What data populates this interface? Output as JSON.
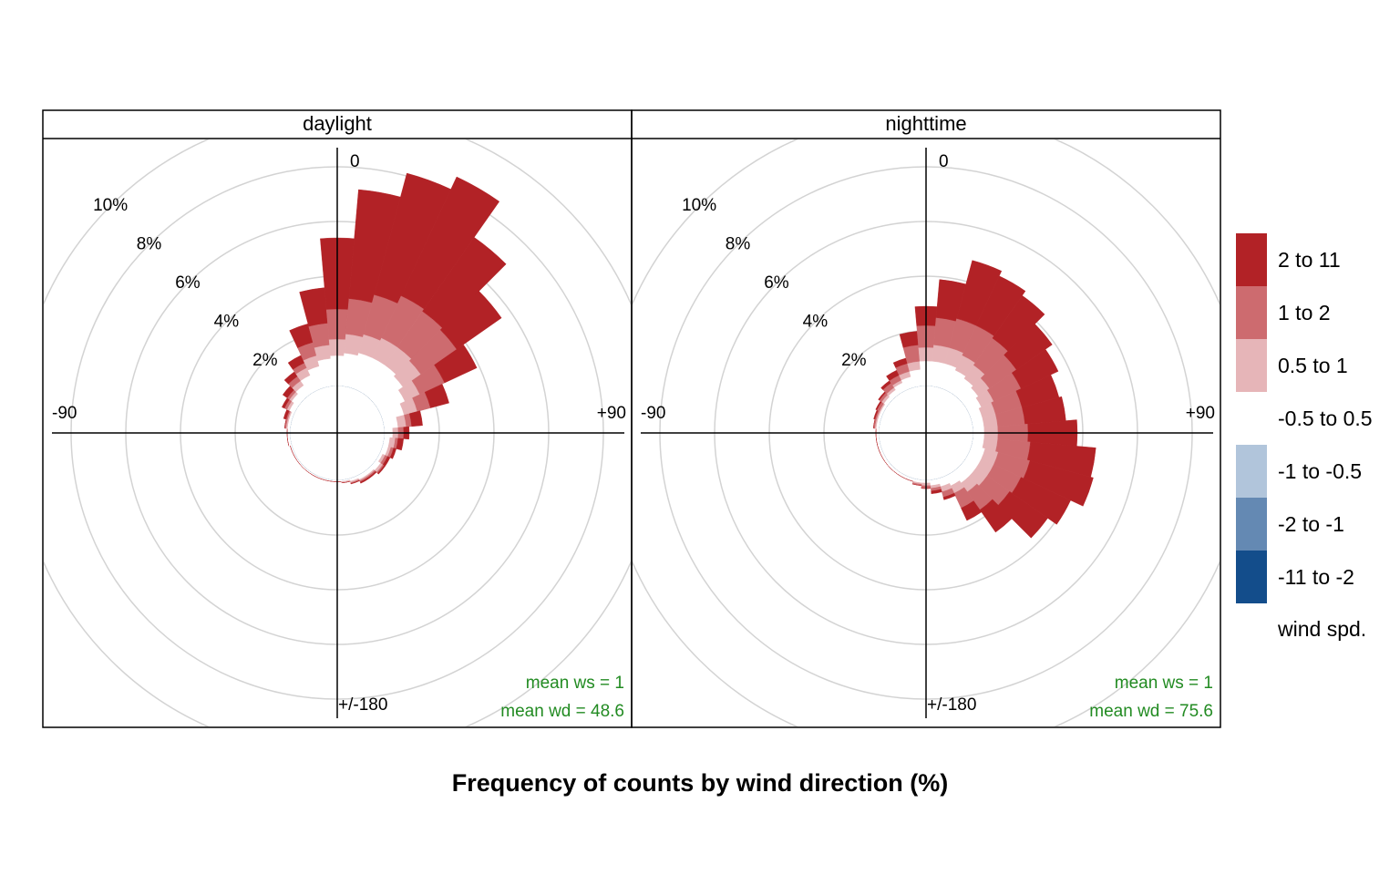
{
  "chart_data": {
    "type": "windrose",
    "title": "Frequency of counts by wind direction (%)",
    "legend_title": "wind spd.",
    "directions": [
      -180,
      -170,
      -160,
      -150,
      -140,
      -130,
      -120,
      -110,
      -100,
      -90,
      -80,
      -70,
      -60,
      -50,
      -40,
      -30,
      -20,
      -10,
      0,
      10,
      20,
      30,
      40,
      50,
      60,
      70,
      80,
      90,
      100,
      110,
      120,
      130,
      140,
      150,
      160,
      170
    ],
    "bin_width": 10,
    "rlim": [
      0,
      10
    ],
    "rticks": [
      {
        "value": 2,
        "label": "2%"
      },
      {
        "value": 4,
        "label": "4%"
      },
      {
        "value": 6,
        "label": "6%"
      },
      {
        "value": 8,
        "label": "8%"
      },
      {
        "value": 10,
        "label": "10%"
      }
    ],
    "angle_ticks": [
      0,
      {
        "value": 90,
        "label": "+90"
      },
      {
        "value": -90,
        "label": "-90"
      },
      {
        "value": 180,
        "label": "+/-180"
      }
    ],
    "grid": true,
    "speed_bins": [
      {
        "name": "-11 to -2",
        "color": "#134d8b"
      },
      {
        "name": "-2 to -1",
        "color": "#6489b3"
      },
      {
        "name": "-1 to -0.5",
        "color": "#b1c5db"
      },
      {
        "name": "-0.5 to 0.5",
        "color": "#ffffff"
      },
      {
        "name": "0.5 to 1",
        "color": "#e6b5b8"
      },
      {
        "name": "1 to 2",
        "color": "#cd6b6f"
      },
      {
        "name": "2 to 11",
        "color": "#b22226"
      }
    ],
    "panels": [
      {
        "title": "daylight",
        "annotations": [
          "mean ws =  1",
          "mean wd =  48.6"
        ],
        "values": [
          [
            0,
            0,
            0,
            0,
            0,
            0,
            0,
            0,
            0,
            0,
            0,
            0,
            0,
            0,
            0,
            0,
            0,
            0,
            0,
            0,
            0,
            0,
            0,
            0,
            0,
            0,
            0,
            0,
            0,
            0,
            0,
            0,
            0,
            0,
            0,
            0
          ],
          [
            0,
            0,
            0,
            0,
            0,
            0,
            0,
            0,
            0,
            0,
            0,
            0,
            0,
            0,
            0,
            0,
            0,
            0,
            0,
            0,
            0,
            0,
            0,
            0,
            0,
            0,
            0,
            0,
            0,
            0,
            0,
            0,
            0,
            0,
            0,
            0
          ],
          [
            0,
            0,
            0,
            0,
            0,
            0,
            0,
            0,
            0,
            0,
            0,
            0,
            0,
            0,
            0,
            0,
            0,
            0,
            0,
            0,
            0,
            0,
            0,
            0,
            0,
            0,
            0,
            0,
            0,
            0,
            0,
            0,
            0,
            0,
            0,
            0
          ],
          [
            0.05,
            0.05,
            0.05,
            0.05,
            0.05,
            0.05,
            0.05,
            0.05,
            0.1,
            0.1,
            0.1,
            0.1,
            0.2,
            0.3,
            0.4,
            0.6,
            0.8,
            1.0,
            1.1,
            1.2,
            1.3,
            1.3,
            1.3,
            1.2,
            1.0,
            0.8,
            0.5,
            0.3,
            0.2,
            0.2,
            0.1,
            0.2,
            0.15,
            0.15,
            0.1,
            0.05
          ],
          [
            0,
            0,
            0,
            0,
            0,
            0,
            0,
            0,
            0,
            0,
            0.05,
            0.05,
            0.1,
            0.1,
            0.2,
            0.3,
            0.4,
            0.5,
            0.6,
            0.7,
            0.7,
            0.8,
            0.8,
            0.8,
            0.6,
            0.5,
            0.3,
            0.2,
            0.2,
            0.1,
            0.1,
            0.1,
            0.05,
            0.05,
            0.05,
            0.05
          ],
          [
            0,
            0,
            0,
            0,
            0,
            0,
            0,
            0,
            0,
            0,
            0.05,
            0.05,
            0.1,
            0.1,
            0.2,
            0.2,
            0.5,
            0.8,
            1.1,
            1.3,
            1.5,
            1.7,
            1.6,
            1.6,
            1.0,
            0.5,
            0.2,
            0.2,
            0.1,
            0.1,
            0.1,
            0.05,
            0.05,
            0.05,
            0.03,
            0
          ],
          [
            0,
            0,
            0,
            0,
            0,
            0,
            0,
            0,
            0,
            0,
            0,
            0.1,
            0.1,
            0.2,
            0.2,
            0.3,
            0.7,
            1.3,
            2.6,
            4.0,
            4.6,
            4.8,
            3.3,
            2.0,
            1.3,
            0.7,
            0.4,
            0.2,
            0.2,
            0.1,
            0.1,
            0.05,
            0.05,
            0.05,
            0.02,
            0
          ]
        ]
      },
      {
        "title": "nighttime",
        "annotations": [
          "mean ws =  1",
          "mean wd =  75.6"
        ],
        "values": [
          [
            0,
            0,
            0,
            0,
            0,
            0,
            0,
            0,
            0,
            0,
            0,
            0,
            0,
            0,
            0,
            0,
            0,
            0,
            0,
            0,
            0,
            0,
            0,
            0,
            0,
            0,
            0,
            0,
            0,
            0,
            0,
            0,
            0,
            0,
            0,
            0
          ],
          [
            0,
            0,
            0,
            0,
            0,
            0,
            0,
            0,
            0,
            0,
            0,
            0,
            0,
            0,
            0,
            0,
            0,
            0,
            0,
            0,
            0,
            0,
            0,
            0,
            0,
            0,
            0,
            0,
            0,
            0,
            0,
            0,
            0,
            0,
            0,
            0
          ],
          [
            0,
            0,
            0,
            0,
            0,
            0,
            0,
            0,
            0,
            0,
            0,
            0,
            0,
            0,
            0,
            0,
            0,
            0,
            0,
            0,
            0,
            0,
            0,
            0,
            0,
            0,
            0,
            0,
            0,
            0,
            0,
            0,
            0,
            0,
            0,
            0
          ],
          [
            0.1,
            0.1,
            0.1,
            0.1,
            0.1,
            0.1,
            0.1,
            0.1,
            0.1,
            0.1,
            0.1,
            0.1,
            0.1,
            0.15,
            0.2,
            0.3,
            0.4,
            0.6,
            0.9,
            0.9,
            0.9,
            0.8,
            0.7,
            0.6,
            0.5,
            0.4,
            0.4,
            0.4,
            0.4,
            0.5,
            0.5,
            0.5,
            0.5,
            0.4,
            0.3,
            0.2
          ],
          [
            0.1,
            0.05,
            0,
            0,
            0,
            0,
            0,
            0,
            0,
            0,
            0.05,
            0.05,
            0.05,
            0.1,
            0.1,
            0.1,
            0.2,
            0.3,
            0.5,
            0.6,
            0.6,
            0.6,
            0.6,
            0.5,
            0.5,
            0.5,
            0.5,
            0.5,
            0.5,
            0.5,
            0.5,
            0.5,
            0.4,
            0.3,
            0.2,
            0.1
          ],
          [
            0.1,
            0.05,
            0,
            0,
            0,
            0,
            0,
            0,
            0,
            0,
            0.05,
            0.05,
            0.1,
            0.1,
            0.2,
            0.2,
            0.3,
            0.6,
            0.8,
            1.0,
            1.1,
            1.2,
            1.2,
            1.2,
            1.1,
            1.0,
            1.0,
            1.1,
            1.2,
            1.2,
            1.1,
            1.0,
            0.8,
            0.6,
            0.2,
            0.1
          ],
          [
            0,
            0,
            0,
            0,
            0,
            0,
            0,
            0,
            0,
            0,
            0,
            0.05,
            0.05,
            0.05,
            0.1,
            0.2,
            0.2,
            0.5,
            0.7,
            1.4,
            2.2,
            2.0,
            1.9,
            1.6,
            1.5,
            1.4,
            1.5,
            1.8,
            2.4,
            2.4,
            2.0,
            1.7,
            1.0,
            0.5,
            0.1,
            0.1
          ]
        ]
      }
    ]
  }
}
